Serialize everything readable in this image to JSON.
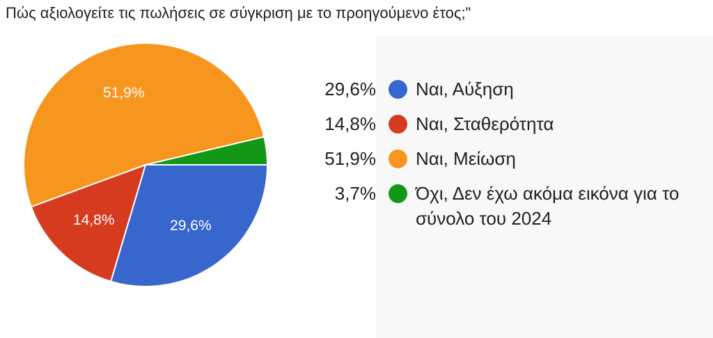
{
  "title": "Πώς αξιολογείτε τις πωλήσεις σε σύγκριση με το προηγούμενο έτος;\"",
  "chart_data": {
    "type": "pie",
    "slices": [
      {
        "label": "Ναι, Αύξηση",
        "value": 29.6,
        "display": "29,6%",
        "color": "#3766cc"
      },
      {
        "label": "Ναι, Σταθερότητα",
        "value": 14.8,
        "display": "14,8%",
        "color": "#d63b20"
      },
      {
        "label": "Ναι, Μείωση",
        "value": 51.9,
        "display": "51,9%",
        "color": "#f7961f"
      },
      {
        "label": "Όχι, Δεν έχω ακόμα εικόνα για το σύνολο του 2024",
        "value": 3.7,
        "display": "3,7%",
        "color": "#139717"
      }
    ],
    "legend_position": "right"
  }
}
